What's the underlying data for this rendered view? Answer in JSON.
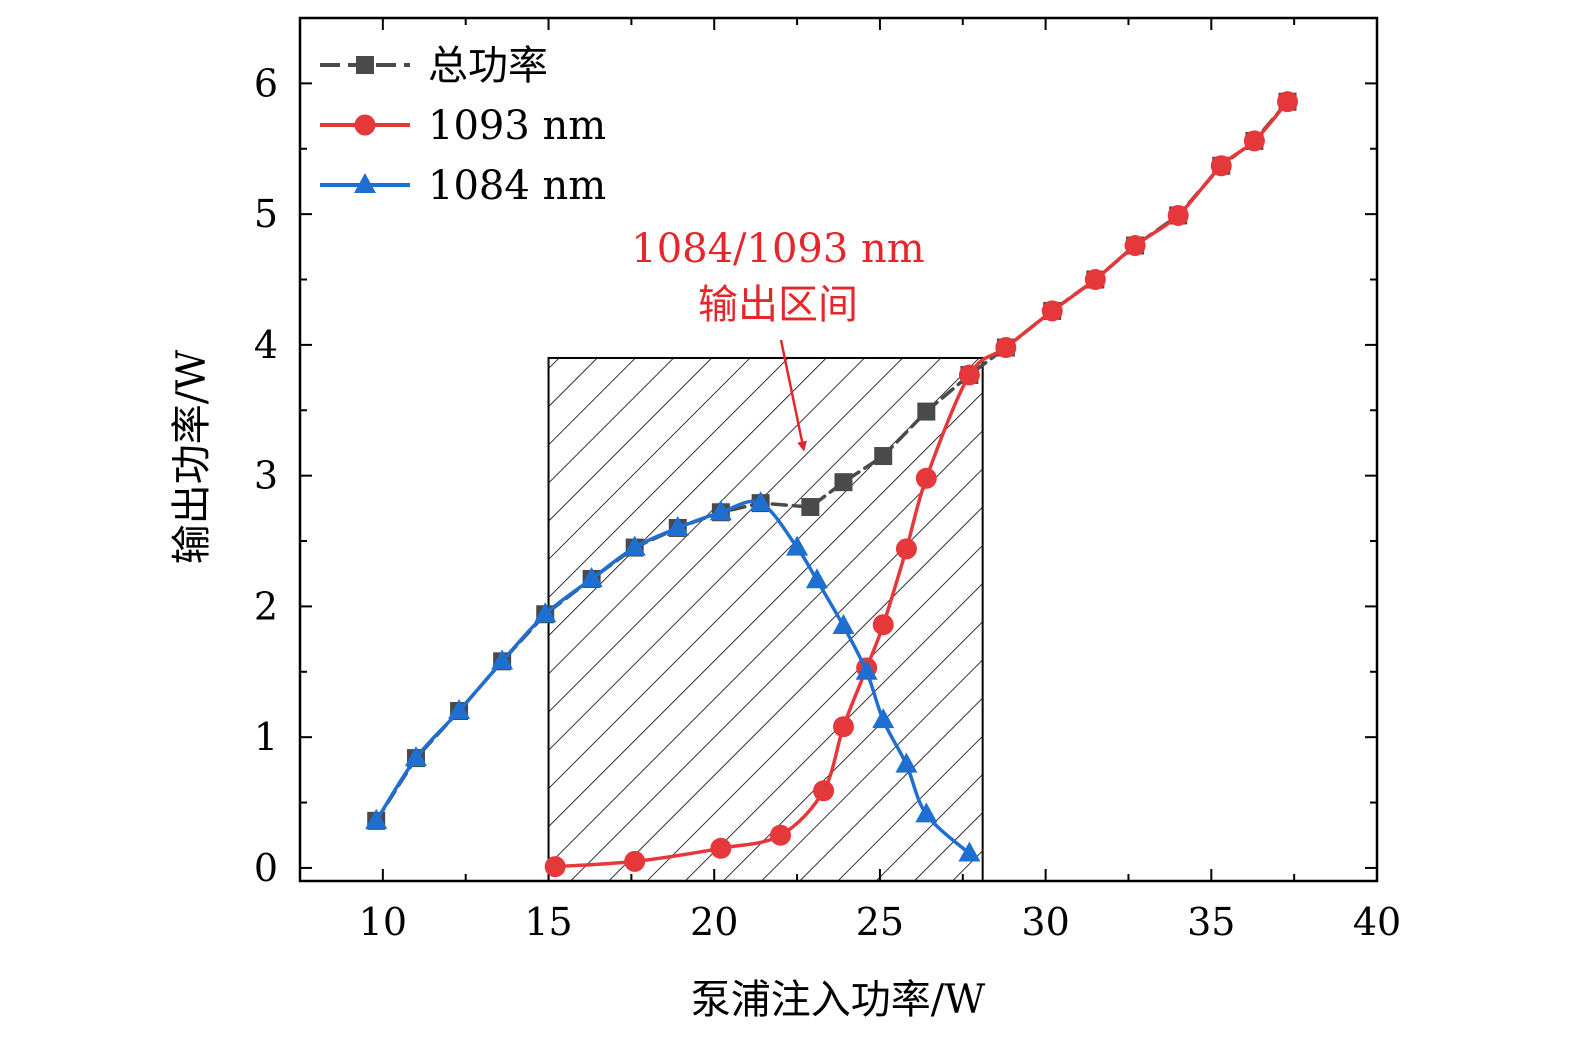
{
  "chart_data": {
    "type": "line",
    "xlabel": "泵浦注入功率/W",
    "ylabel": "输出功率/W",
    "xlim": [
      7.5,
      40
    ],
    "ylim": [
      -0.1,
      6.5
    ],
    "xticks": [
      10,
      15,
      20,
      25,
      30,
      35,
      40
    ],
    "yticks": [
      0,
      1,
      2,
      3,
      4,
      5,
      6
    ],
    "grid": false,
    "legend": "top-left",
    "series": [
      {
        "name": "总功率",
        "marker": "square",
        "color": "#4a4a4a",
        "dashed": true,
        "x": [
          9.8,
          11.0,
          12.3,
          13.6,
          14.9,
          16.3,
          17.6,
          18.9,
          20.2,
          21.4,
          22.9,
          23.9,
          25.1,
          26.4,
          27.7,
          28.8,
          30.2,
          31.5,
          32.7,
          34.0,
          35.3,
          36.3,
          37.3
        ],
        "y": [
          0.36,
          0.84,
          1.2,
          1.58,
          1.94,
          2.21,
          2.45,
          2.6,
          2.72,
          2.79,
          2.76,
          2.95,
          3.15,
          3.49,
          3.77,
          3.98,
          4.26,
          4.5,
          4.76,
          4.99,
          5.37,
          5.56,
          5.86
        ]
      },
      {
        "name": "1093 nm",
        "marker": "circle",
        "color": "#e5383b",
        "x": [
          15.2,
          17.6,
          20.2,
          22.0,
          23.3,
          23.9,
          24.6,
          25.1,
          25.8,
          26.4,
          27.7,
          28.8,
          30.2,
          31.5,
          32.7,
          34.0,
          35.3,
          36.3,
          37.3
        ],
        "y": [
          0.01,
          0.05,
          0.15,
          0.25,
          0.59,
          1.08,
          1.53,
          1.86,
          2.44,
          2.98,
          3.77,
          3.98,
          4.26,
          4.5,
          4.76,
          4.99,
          5.37,
          5.56,
          5.86
        ]
      },
      {
        "name": "1084 nm",
        "marker": "triangle",
        "color": "#1f6fd1",
        "x": [
          9.8,
          11.0,
          12.3,
          13.6,
          14.9,
          16.3,
          17.6,
          18.9,
          20.2,
          21.4,
          22.5,
          23.1,
          23.9,
          24.6,
          25.1,
          25.8,
          26.4,
          27.7
        ],
        "y": [
          0.36,
          0.84,
          1.2,
          1.58,
          1.94,
          2.21,
          2.45,
          2.6,
          2.72,
          2.79,
          2.45,
          2.2,
          1.85,
          1.5,
          1.13,
          0.79,
          0.41,
          0.11
        ]
      }
    ],
    "shaded_region": {
      "x": [
        15.0,
        28.1
      ],
      "y": [
        -0.1,
        3.9
      ],
      "pattern": "hatched"
    },
    "annotation": {
      "text_line1": "1084/1093 nm",
      "text_line2": "输出区间",
      "color": "#e5262b",
      "arrow_target": [
        22.7,
        3.2
      ]
    }
  }
}
